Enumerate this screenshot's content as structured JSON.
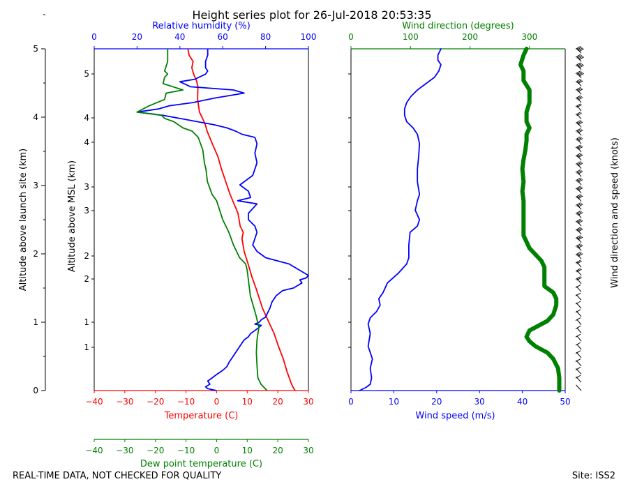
{
  "page": {
    "title": "Height series plot for 26-Jul-2018 20:53:35",
    "footer_left": "REAL-TIME DATA, NOT CHECKED FOR QUALITY",
    "footer_right": "Site: ISS2"
  },
  "colors": {
    "temperature": "#ff0000",
    "humidity": "#0000ff",
    "dewpoint": "#008000",
    "wind_speed": "#0000ff",
    "wind_direction": "#008000",
    "barbs": "#000000",
    "axis": "#000000"
  },
  "chart_data": [
    {
      "type": "line",
      "panel": "thermo",
      "ylabel_left": "Altitude above launch site (km)",
      "ylabel_right": "Altitude above MSL (km)",
      "left_ticks": [
        "0",
        "1",
        "2",
        "3",
        "4",
        "5"
      ],
      "left_ylim": [
        0,
        5
      ],
      "msl_ticks": [
        "1",
        "1",
        "2",
        "2",
        "3",
        "3",
        "4",
        "4",
        "5"
      ],
      "xlabel_temperature": "Temperature (C)",
      "temperature_ticks": [
        "−40",
        "−30",
        "−20",
        "−10",
        "0",
        "10",
        "20",
        "30"
      ],
      "temperature_xlim": [
        -40,
        30
      ],
      "xlabel_humidity": "Relative humidity (%)",
      "humidity_ticks": [
        "0",
        "20",
        "40",
        "60",
        "80",
        "100"
      ],
      "humidity_xlim": [
        0,
        100
      ],
      "xlabel_dewpoint": "Dew point temperature (C)",
      "dewpoint_ticks": [
        "−40",
        "−30",
        "−20",
        "−10",
        "0",
        "10",
        "20",
        "30"
      ],
      "dewpoint_xlim": [
        -40,
        30
      ],
      "series": [
        {
          "key": "temperature",
          "points": [
            [
              25.7,
              0.0
            ],
            [
              25.0,
              0.05
            ],
            [
              24.5,
              0.1
            ],
            [
              23.0,
              0.3
            ],
            [
              21.8,
              0.5
            ],
            [
              20.2,
              0.7
            ],
            [
              18.8,
              0.9
            ],
            [
              16.9,
              1.1
            ],
            [
              15.0,
              1.3
            ],
            [
              13.0,
              1.6
            ],
            [
              11.5,
              1.8
            ],
            [
              10.3,
              2.0
            ],
            [
              9.0,
              2.2
            ],
            [
              8.3,
              2.4
            ],
            [
              8.7,
              2.5
            ],
            [
              7.7,
              2.6
            ],
            [
              7.0,
              2.8
            ],
            [
              4.4,
              3.1
            ],
            [
              3.0,
              3.3
            ],
            [
              1.6,
              3.5
            ],
            [
              0.4,
              3.7
            ],
            [
              -1.4,
              3.9
            ],
            [
              -3.1,
              4.1
            ],
            [
              -3.7,
              4.2
            ],
            [
              -4.6,
              4.3
            ],
            [
              -5.6,
              4.4
            ],
            [
              -6.2,
              4.6
            ],
            [
              -6.1,
              4.8
            ],
            [
              -6.6,
              4.9
            ],
            [
              -7.5,
              5.0
            ],
            [
              -8.1,
              5.1
            ],
            [
              -7.7,
              5.2
            ],
            [
              -9.0,
              5.3
            ],
            [
              -9.4,
              5.4
            ]
          ]
        },
        {
          "key": "humidity",
          "points": [
            [
              57,
              0.0
            ],
            [
              53,
              0.03
            ],
            [
              52,
              0.06
            ],
            [
              54,
              0.1
            ],
            [
              53,
              0.15
            ],
            [
              55,
              0.2
            ],
            [
              57,
              0.25
            ],
            [
              60,
              0.32
            ],
            [
              62,
              0.38
            ],
            [
              63,
              0.45
            ],
            [
              65,
              0.55
            ],
            [
              67,
              0.65
            ],
            [
              69,
              0.75
            ],
            [
              70,
              0.8
            ],
            [
              72,
              0.85
            ],
            [
              73,
              0.9
            ],
            [
              75,
              0.95
            ],
            [
              77,
              1.0
            ],
            [
              78,
              1.03
            ],
            [
              75,
              1.05
            ],
            [
              77,
              1.08
            ],
            [
              78,
              1.12
            ],
            [
              80,
              1.16
            ],
            [
              82,
              1.3
            ],
            [
              83,
              1.4
            ],
            [
              85,
              1.5
            ],
            [
              88,
              1.58
            ],
            [
              93,
              1.62
            ],
            [
              97,
              1.7
            ],
            [
              96,
              1.75
            ],
            [
              99,
              1.78
            ],
            [
              100,
              1.82
            ],
            [
              96,
              1.9
            ],
            [
              91,
              2.0
            ],
            [
              80,
              2.1
            ],
            [
              76,
              2.2
            ],
            [
              74,
              2.3
            ],
            [
              76,
              2.5
            ],
            [
              75,
              2.6
            ],
            [
              72,
              2.7
            ],
            [
              72,
              2.8
            ],
            [
              76,
              2.95
            ],
            [
              67,
              3.0
            ],
            [
              73,
              3.05
            ],
            [
              72,
              3.15
            ],
            [
              68,
              3.25
            ],
            [
              74,
              3.4
            ],
            [
              75,
              3.5
            ],
            [
              76,
              3.6
            ],
            [
              75,
              3.75
            ],
            [
              76,
              3.9
            ],
            [
              75,
              4.0
            ],
            [
              69,
              4.05
            ],
            [
              66,
              4.1
            ],
            [
              62,
              4.15
            ],
            [
              56,
              4.2
            ],
            [
              48,
              4.25
            ],
            [
              40,
              4.3
            ],
            [
              32,
              4.35
            ],
            [
              20,
              4.4
            ],
            [
              30,
              4.45
            ],
            [
              35,
              4.5
            ],
            [
              46,
              4.55
            ],
            [
              56,
              4.62
            ],
            [
              70,
              4.7
            ],
            [
              65,
              4.75
            ],
            [
              45,
              4.8
            ],
            [
              40,
              4.88
            ],
            [
              47,
              4.92
            ],
            [
              52,
              5.0
            ],
            [
              53,
              5.05
            ],
            [
              52,
              5.1
            ],
            [
              52,
              5.2
            ],
            [
              53,
              5.3
            ],
            [
              53,
              5.4
            ]
          ]
        },
        {
          "key": "dewpoint",
          "points": [
            [
              16.5,
              0.0
            ],
            [
              15.5,
              0.05
            ],
            [
              14.5,
              0.1
            ],
            [
              13.5,
              0.2
            ],
            [
              13.2,
              0.4
            ],
            [
              13.0,
              0.6
            ],
            [
              13.2,
              0.8
            ],
            [
              13.8,
              1.0
            ],
            [
              12.8,
              1.2
            ],
            [
              11.0,
              1.5
            ],
            [
              10.5,
              1.7
            ],
            [
              10.0,
              1.9
            ],
            [
              9.5,
              2.0
            ],
            [
              7.5,
              2.1
            ],
            [
              5.5,
              2.3
            ],
            [
              4.0,
              2.5
            ],
            [
              2.0,
              2.7
            ],
            [
              1.0,
              2.85
            ],
            [
              0.0,
              3.0
            ],
            [
              -1.5,
              3.1
            ],
            [
              -3.0,
              3.3
            ],
            [
              -3.5,
              3.5
            ],
            [
              -4.0,
              3.6
            ],
            [
              -4.5,
              3.8
            ],
            [
              -6.0,
              4.0
            ],
            [
              -8.0,
              4.1
            ],
            [
              -11.0,
              4.15
            ],
            [
              -14.0,
              4.25
            ],
            [
              -17.0,
              4.3
            ],
            [
              -18.0,
              4.35
            ],
            [
              -26.0,
              4.4
            ],
            [
              -22.0,
              4.5
            ],
            [
              -17.0,
              4.6
            ],
            [
              -16.5,
              4.7
            ],
            [
              -11.0,
              4.75
            ],
            [
              -17.5,
              4.85
            ],
            [
              -17.0,
              4.95
            ],
            [
              -16.0,
              5.0
            ],
            [
              -17.0,
              5.05
            ],
            [
              -16.0,
              5.2
            ],
            [
              -16.0,
              5.4
            ]
          ]
        }
      ]
    },
    {
      "type": "line",
      "panel": "wind",
      "xlabel_speed": "Wind speed (m/s)",
      "speed_ticks": [
        "0",
        "10",
        "20",
        "30",
        "40",
        "50"
      ],
      "speed_xlim": [
        0,
        50
      ],
      "xlabel_direction": "Wind direction (degrees)",
      "direction_ticks": [
        "0",
        "100",
        "200",
        "300"
      ],
      "direction_xlim": [
        0,
        360
      ],
      "barb_label": "Wind direction and speed (knots)",
      "ylim": [
        0,
        5.4
      ],
      "series": [
        {
          "key": "wind_speed",
          "points": [
            [
              2.0,
              0.0
            ],
            [
              3.5,
              0.05
            ],
            [
              4.5,
              0.1
            ],
            [
              4.8,
              0.2
            ],
            [
              4.5,
              0.35
            ],
            [
              5.0,
              0.5
            ],
            [
              4.0,
              0.7
            ],
            [
              4.5,
              0.9
            ],
            [
              4.0,
              1.05
            ],
            [
              4.5,
              1.15
            ],
            [
              6.0,
              1.25
            ],
            [
              6.8,
              1.35
            ],
            [
              6.5,
              1.45
            ],
            [
              7.5,
              1.55
            ],
            [
              8.5,
              1.7
            ],
            [
              11.0,
              1.85
            ],
            [
              13.0,
              2.0
            ],
            [
              13.5,
              2.1
            ],
            [
              13.5,
              2.3
            ],
            [
              13.8,
              2.5
            ],
            [
              15.5,
              2.6
            ],
            [
              16.0,
              2.7
            ],
            [
              15.0,
              2.85
            ],
            [
              15.5,
              3.0
            ],
            [
              16.0,
              3.1
            ],
            [
              15.5,
              3.3
            ],
            [
              15.5,
              3.5
            ],
            [
              15.8,
              3.7
            ],
            [
              16.0,
              3.9
            ],
            [
              15.5,
              4.05
            ],
            [
              14.5,
              4.15
            ],
            [
              13.0,
              4.25
            ],
            [
              12.5,
              4.35
            ],
            [
              12.5,
              4.45
            ],
            [
              13.0,
              4.55
            ],
            [
              14.0,
              4.65
            ],
            [
              15.5,
              4.75
            ],
            [
              17.5,
              4.85
            ],
            [
              19.5,
              4.95
            ],
            [
              20.5,
              5.05
            ],
            [
              21.0,
              5.15
            ],
            [
              20.3,
              5.22
            ],
            [
              20.3,
              5.3
            ],
            [
              21.0,
              5.4
            ]
          ]
        },
        {
          "key": "wind_direction",
          "points": [
            [
              350,
              0.0
            ],
            [
              350,
              0.1
            ],
            [
              350,
              0.2
            ],
            [
              348,
              0.35
            ],
            [
              340,
              0.5
            ],
            [
              330,
              0.6
            ],
            [
              310,
              0.7
            ],
            [
              300,
              0.78
            ],
            [
              295,
              0.85
            ],
            [
              300,
              0.95
            ],
            [
              310,
              1.0
            ],
            [
              330,
              1.1
            ],
            [
              340,
              1.2
            ],
            [
              345,
              1.35
            ],
            [
              345,
              1.45
            ],
            [
              340,
              1.55
            ],
            [
              325,
              1.65
            ],
            [
              325,
              1.75
            ],
            [
              325,
              1.85
            ],
            [
              325,
              1.95
            ],
            [
              320,
              2.05
            ],
            [
              310,
              2.15
            ],
            [
              300,
              2.25
            ],
            [
              295,
              2.35
            ],
            [
              290,
              2.45
            ],
            [
              290,
              2.6
            ],
            [
              290,
              2.8
            ],
            [
              290,
              3.0
            ],
            [
              288,
              3.15
            ],
            [
              290,
              3.3
            ],
            [
              288,
              3.5
            ],
            [
              290,
              3.65
            ],
            [
              293,
              3.8
            ],
            [
              295,
              3.95
            ],
            [
              295,
              4.05
            ],
            [
              300,
              4.15
            ],
            [
              295,
              4.25
            ],
            [
              295,
              4.4
            ],
            [
              300,
              4.55
            ],
            [
              300,
              4.75
            ],
            [
              290,
              4.9
            ],
            [
              290,
              5.05
            ],
            [
              285,
              5.15
            ],
            [
              290,
              5.3
            ],
            [
              295,
              5.4
            ]
          ]
        }
      ]
    }
  ]
}
